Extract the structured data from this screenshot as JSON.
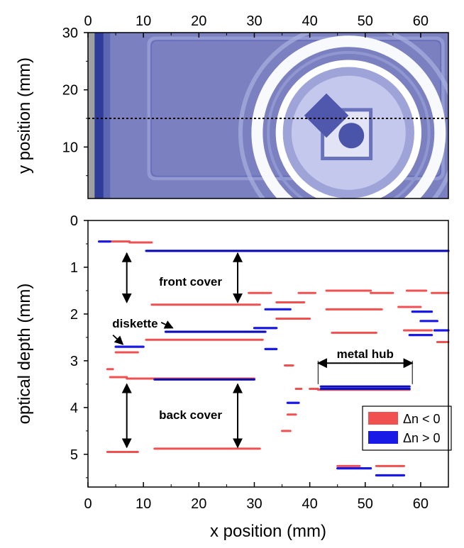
{
  "chart_data": [
    {
      "type": "heatmap",
      "title": "",
      "xlabel": "",
      "ylabel": "y position (mm)",
      "x_ticks": [
        0,
        10,
        20,
        30,
        40,
        50,
        60
      ],
      "y_ticks": [
        10,
        20,
        30
      ],
      "xlim": [
        0,
        65
      ],
      "ylim": [
        1,
        30
      ],
      "x_tick_position": "top",
      "reference_line": {
        "y": 15,
        "style": "dotted"
      },
      "image_colors": {
        "background": "#7b80c0",
        "edge": "#2f3c9a",
        "gray_strip": "#a0a0a0",
        "bright": "#ffffff"
      },
      "features": {
        "rect_outline": {
          "x0": 11,
          "x1": 64,
          "y0": 4.5,
          "y1": 29
        },
        "rings": {
          "cx": 47,
          "cy": 12.5,
          "radii": [
            19.5,
            16.5,
            14.5,
            12.5
          ]
        },
        "square": {
          "x0": 42.3,
          "x1": 51,
          "y0": 8,
          "y1": 16.5
        },
        "diamond": {
          "cx": 43,
          "cy": 15.5,
          "r": 4
        },
        "circle": {
          "cx": 47.5,
          "cy": 12,
          "r": 2.3
        }
      }
    },
    {
      "type": "scatter",
      "title": "",
      "xlabel": "x position (mm)",
      "ylabel": "optical depth (mm)",
      "x_ticks": [
        0,
        10,
        20,
        30,
        40,
        50,
        60
      ],
      "y_ticks": [
        0,
        1,
        2,
        3,
        4,
        5
      ],
      "xlim": [
        0,
        65
      ],
      "ylim": [
        0,
        5.7
      ],
      "y_inverted": true,
      "legend": {
        "position": "lower-right",
        "entries": [
          {
            "label": "Δn < 0",
            "color": "#f05050"
          },
          {
            "label": "Δn > 0",
            "color": "#1a1ae6"
          }
        ]
      },
      "series": [
        {
          "sign": "negative",
          "color": "#f05050",
          "segments": [
            {
              "x0": 2,
              "x1": 7.5,
              "y": 0.45
            },
            {
              "x0": 7.5,
              "x1": 11.5,
              "y": 0.47
            },
            {
              "x0": 11.5,
              "x1": 31,
              "y": 1.8
            },
            {
              "x0": 5,
              "x1": 9,
              "y": 2.82
            },
            {
              "x0": 10.5,
              "x1": 31.5,
              "y": 2.55
            },
            {
              "x0": 29,
              "x1": 33,
              "y": 1.55
            },
            {
              "x0": 38,
              "x1": 41,
              "y": 1.55
            },
            {
              "x0": 43,
              "x1": 51,
              "y": 1.5
            },
            {
              "x0": 51,
              "x1": 55,
              "y": 1.55
            },
            {
              "x0": 57.5,
              "x1": 61,
              "y": 1.5
            },
            {
              "x0": 62,
              "x1": 65,
              "y": 1.55
            },
            {
              "x0": 34,
              "x1": 39,
              "y": 1.75
            },
            {
              "x0": 43,
              "x1": 53,
              "y": 1.9
            },
            {
              "x0": 56,
              "x1": 60,
              "y": 1.85
            },
            {
              "x0": 34,
              "x1": 40,
              "y": 2.1
            },
            {
              "x0": 44,
              "x1": 52,
              "y": 2.4
            },
            {
              "x0": 57,
              "x1": 62,
              "y": 2.35
            },
            {
              "x0": 4,
              "x1": 7,
              "y": 3.35
            },
            {
              "x0": 7,
              "x1": 30,
              "y": 3.38
            },
            {
              "x0": 35.5,
              "x1": 37,
              "y": 3.1
            },
            {
              "x0": 37.5,
              "x1": 38.5,
              "y": 3.6
            },
            {
              "x0": 40,
              "x1": 41.5,
              "y": 3.6
            },
            {
              "x0": 41.5,
              "x1": 58,
              "y": 3.62
            },
            {
              "x0": 36,
              "x1": 37.5,
              "y": 4.15
            },
            {
              "x0": 35,
              "x1": 36.5,
              "y": 4.5
            },
            {
              "x0": 3.5,
              "x1": 9,
              "y": 4.95
            },
            {
              "x0": 12,
              "x1": 31,
              "y": 4.88
            },
            {
              "x0": 45,
              "x1": 49,
              "y": 5.25
            },
            {
              "x0": 52,
              "x1": 57,
              "y": 5.25
            },
            {
              "x0": 63,
              "x1": 65,
              "y": 2.6
            },
            {
              "x0": 3.5,
              "x1": 4.5,
              "y": 3.18
            }
          ]
        },
        {
          "sign": "positive",
          "color": "#1a1ae6",
          "segments": [
            {
              "x0": 2,
              "x1": 4,
              "y": 0.45
            },
            {
              "x0": 10.5,
              "x1": 65,
              "y": 0.65
            },
            {
              "x0": 14,
              "x1": 32,
              "y": 2.38
            },
            {
              "x0": 5,
              "x1": 10,
              "y": 2.7
            },
            {
              "x0": 30,
              "x1": 34,
              "y": 2.3
            },
            {
              "x0": 32,
              "x1": 36.5,
              "y": 1.9
            },
            {
              "x0": 58.5,
              "x1": 62,
              "y": 1.95
            },
            {
              "x0": 60,
              "x1": 63,
              "y": 2.15
            },
            {
              "x0": 42,
              "x1": 58,
              "y": 3.55
            },
            {
              "x0": 42,
              "x1": 58,
              "y": 3.6
            },
            {
              "x0": 12,
              "x1": 30,
              "y": 3.4
            },
            {
              "x0": 58,
              "x1": 62,
              "y": 2.45
            },
            {
              "x0": 62.5,
              "x1": 65,
              "y": 2.35
            },
            {
              "x0": 36,
              "x1": 38,
              "y": 3.9
            },
            {
              "x0": 45,
              "x1": 51,
              "y": 5.3
            },
            {
              "x0": 52,
              "x1": 57,
              "y": 5.45
            },
            {
              "x0": 32,
              "x1": 34,
              "y": 2.75
            }
          ]
        }
      ],
      "annotations": [
        {
          "text": "front cover",
          "x": 18.5,
          "y": 1.3
        },
        {
          "text": "diskette",
          "x": 8.5,
          "y": 2.2
        },
        {
          "text": "metal hub",
          "x": 50,
          "y": 2.85
        },
        {
          "text": "back cover",
          "x": 18.5,
          "y": 4.15
        }
      ],
      "arrows": [
        {
          "x": 7,
          "y0": 0.7,
          "y1": 1.75
        },
        {
          "x": 27,
          "y0": 0.7,
          "y1": 1.75
        },
        {
          "x": 7,
          "y0": 3.5,
          "y1": 4.85
        },
        {
          "x": 27,
          "y0": 3.5,
          "y1": 4.85
        },
        {
          "y": 3.05,
          "x0": 41.5,
          "x1": 58.5,
          "horizontal": true
        }
      ]
    }
  ]
}
